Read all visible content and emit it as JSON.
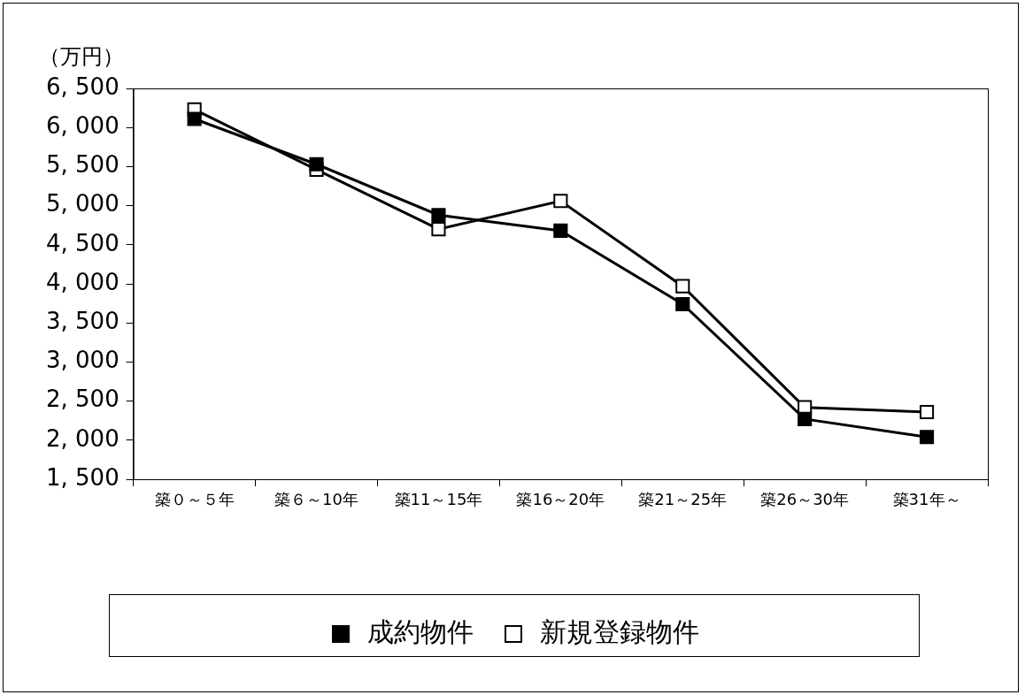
{
  "chart_data": {
    "type": "line",
    "y_label": "（万円）",
    "categories": [
      "築０～５年",
      "築６～10年",
      "築11～15年",
      "築16～20年",
      "築21～25年",
      "築26～30年",
      "築31年～"
    ],
    "series": [
      {
        "name": "成約物件",
        "color": "#000000",
        "marker": "square",
        "values": [
          6110,
          5530,
          4880,
          4680,
          3740,
          2270,
          2040
        ]
      },
      {
        "name": "新規登録物件",
        "color": "#000000",
        "marker": "open_square",
        "values": [
          6230,
          5460,
          4700,
          5060,
          3970,
          2420,
          2360
        ]
      }
    ],
    "ylim": [
      1500,
      6500
    ],
    "yticks": [
      {
        "value": 1500,
        "label": "1, 500"
      },
      {
        "value": 2000,
        "label": "2, 000"
      },
      {
        "value": 2500,
        "label": "2, 500"
      },
      {
        "value": 3000,
        "label": "3, 000"
      },
      {
        "value": 3500,
        "label": "3, 500"
      },
      {
        "value": 4000,
        "label": "4, 000"
      },
      {
        "value": 4500,
        "label": "4, 500"
      },
      {
        "value": 5000,
        "label": "5, 000"
      },
      {
        "value": 5500,
        "label": "5, 500"
      },
      {
        "value": 6000,
        "label": "6, 000"
      },
      {
        "value": 6500,
        "label": "6, 500"
      }
    ],
    "grid": false,
    "legend": "bottom"
  }
}
